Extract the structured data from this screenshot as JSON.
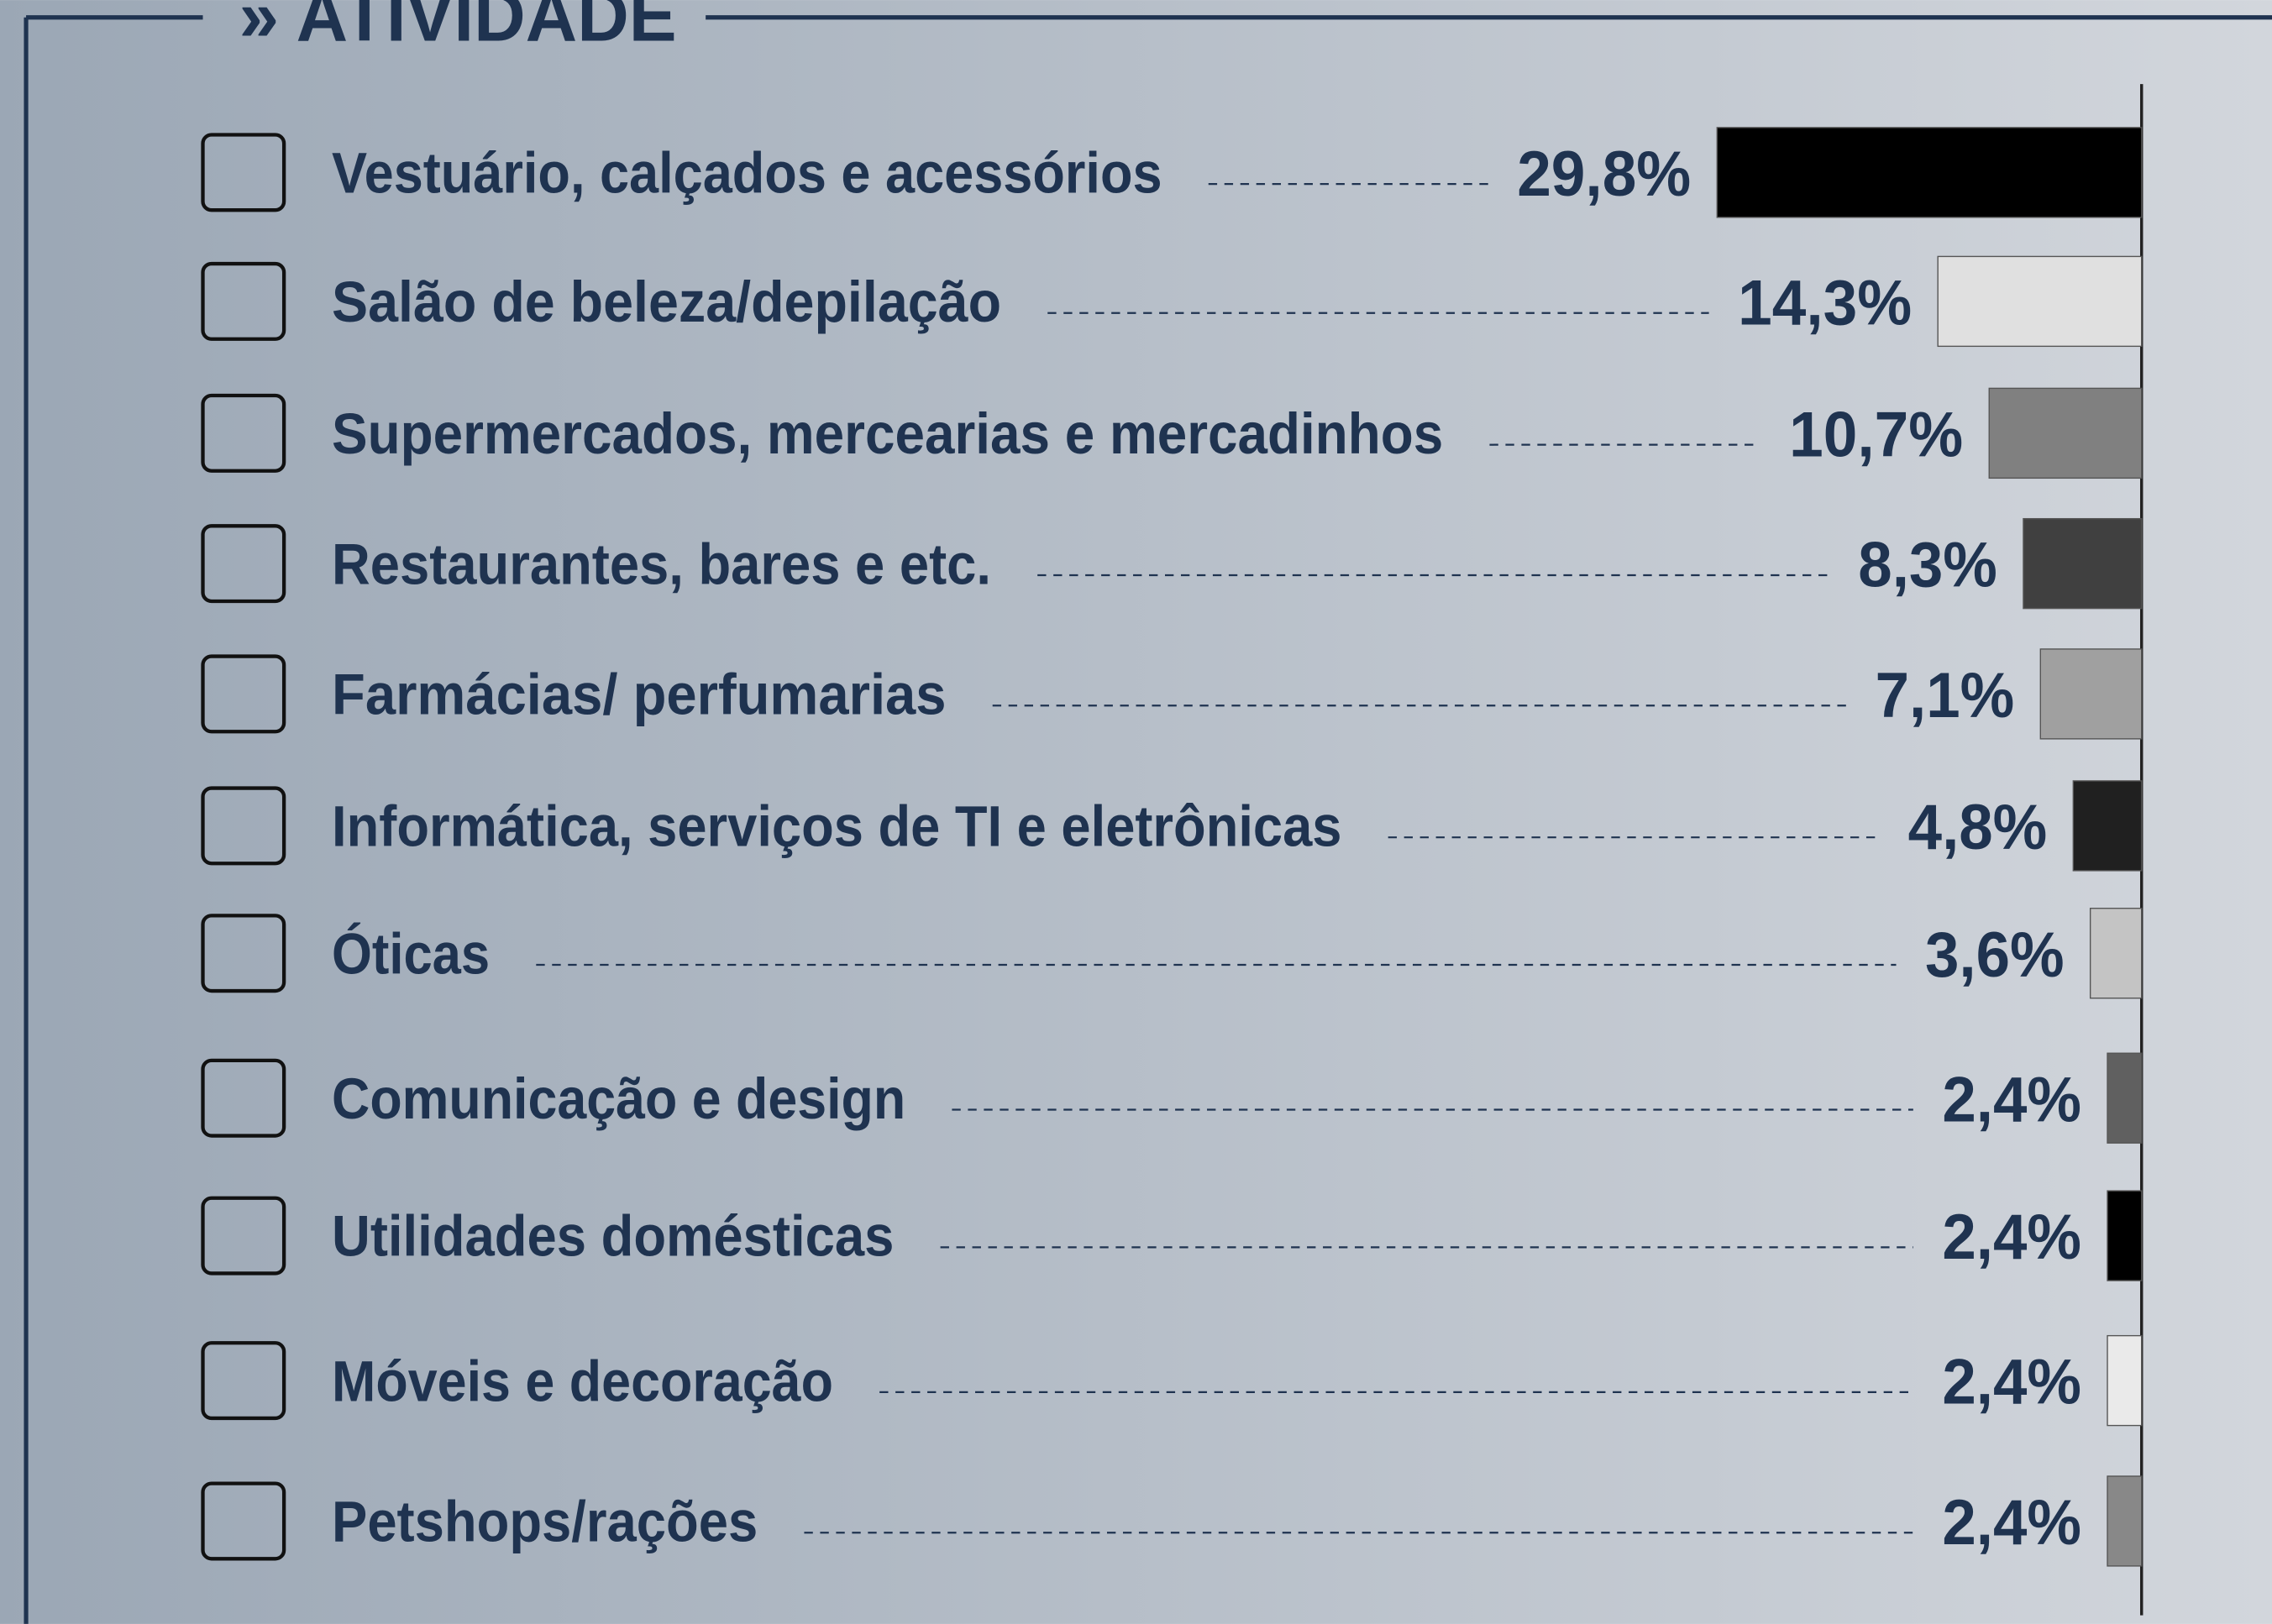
{
  "chart_data": {
    "type": "bar",
    "orientation": "horizontal",
    "title": "» ATIVIDADE",
    "categories": [
      "Vestuário, calçados e acessórios",
      "Salão de beleza/depilação",
      "Supermercados, mercearias e mercadinhos",
      "Restaurantes, bares e etc.",
      "Farmácias/ perfumarias",
      "Informática, serviços de TI e eletrônicas",
      "Óticas",
      "Comunicação e design",
      "Utilidades domésticas",
      "Móveis e decoração",
      "Petshops/rações"
    ],
    "values": [
      29.8,
      14.3,
      10.7,
      8.3,
      7.1,
      4.8,
      3.6,
      2.4,
      2.4,
      2.4,
      2.4
    ],
    "value_labels": [
      "29,8%",
      "14,3%",
      "10,7%",
      "8,3%",
      "7,1%",
      "4,8%",
      "3,6%",
      "2,4%",
      "2,4%",
      "2,4%",
      "2,4%"
    ],
    "colors": [
      "#000000",
      "#e0e0e0",
      "#808080",
      "#404040",
      "#a0a0a0",
      "#202020",
      "#c4c4c4",
      "#606060",
      "#000000",
      "#eaeaea",
      "#888888"
    ],
    "xlim": [
      0,
      30
    ]
  }
}
